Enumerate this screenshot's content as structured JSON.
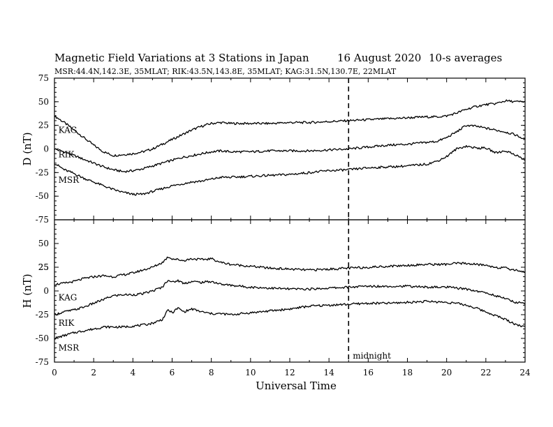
{
  "header": {
    "title": "Magnetic Field Variations at 3 Stations in Japan",
    "date": "16 August  2020",
    "averaging": "10-s averages",
    "stations_info": "MSR:44.4N,142.3E, 35MLAT;  RIK:43.5N,143.8E, 35MLAT;  KAG:31.5N,130.7E, 22MLAT"
  },
  "annotations": {
    "midnight_label": "midnight",
    "midnight_ut": 15
  },
  "chart_data": [
    {
      "type": "line",
      "panel": "D",
      "ylabel": "D (nT)",
      "xlim": [
        0,
        24
      ],
      "ylim": [
        -75,
        75
      ],
      "yticks": [
        -75,
        -50,
        -25,
        0,
        25,
        50,
        75
      ],
      "ytick_labels": [
        "-75",
        "-50",
        "-25",
        "0",
        "25",
        "50",
        "75"
      ],
      "x": [
        0,
        0.5,
        1,
        1.5,
        2,
        2.5,
        3,
        3.5,
        4,
        4.5,
        5,
        5.5,
        6,
        6.5,
        7,
        7.5,
        8,
        8.5,
        9,
        10,
        11,
        12,
        13,
        14,
        15,
        16,
        17,
        18,
        19,
        19.5,
        20,
        20.5,
        21,
        21.5,
        22,
        22.5,
        23,
        23.5,
        24
      ],
      "series": [
        {
          "name": "KAG",
          "values": [
            35,
            28,
            20,
            12,
            4,
            -3,
            -7,
            -6,
            -5,
            -3,
            0,
            5,
            10,
            15,
            20,
            24,
            27,
            28,
            27,
            27,
            27,
            28,
            28,
            29,
            30,
            31,
            32,
            33,
            34,
            34,
            35,
            38,
            42,
            45,
            47,
            48,
            51,
            50,
            50
          ]
        },
        {
          "name": "RIK",
          "values": [
            0,
            -3,
            -7,
            -11,
            -15,
            -19,
            -22,
            -24,
            -23,
            -21,
            -18,
            -15,
            -12,
            -9,
            -7,
            -5,
            -3,
            -2,
            -3,
            -3,
            -2,
            -2,
            -2,
            -1,
            0,
            2,
            4,
            5,
            7,
            8,
            12,
            18,
            25,
            24,
            22,
            20,
            18,
            15,
            10
          ]
        },
        {
          "name": "MSR",
          "values": [
            -15,
            -22,
            -26,
            -31,
            -35,
            -39,
            -43,
            -46,
            -48,
            -48,
            -45,
            -42,
            -39,
            -37,
            -35,
            -34,
            -32,
            -30,
            -30,
            -29,
            -28,
            -27,
            -25,
            -23,
            -22,
            -20,
            -19,
            -18,
            -16,
            -13,
            -8,
            0,
            3,
            1,
            1,
            -4,
            -2,
            -6,
            -12
          ]
        }
      ],
      "series_label_x": {
        "KAG": 0.2,
        "RIK": 0.2,
        "MSR": 0.2
      },
      "series_label_y": {
        "KAG": 20,
        "RIK": -6,
        "MSR": -33
      },
      "label_text": {
        "KAG": "KAG",
        "RIK": "RIK",
        "MSR": "MSR"
      }
    },
    {
      "type": "line",
      "panel": "H",
      "ylabel": "H (nT)",
      "xlabel": "Universal Time",
      "xlim": [
        0,
        24
      ],
      "ylim": [
        -75,
        75
      ],
      "xticks": [
        0,
        2,
        4,
        6,
        8,
        10,
        12,
        14,
        16,
        18,
        20,
        22,
        24
      ],
      "xtick_labels": [
        "0",
        "2",
        "4",
        "6",
        "8",
        "10",
        "12",
        "14",
        "16",
        "18",
        "20",
        "22",
        "24"
      ],
      "yticks": [
        -75,
        -50,
        -25,
        0,
        25,
        50,
        75
      ],
      "ytick_labels": [
        "-75",
        "-50",
        "-25",
        "0",
        "25",
        "",
        ""
      ],
      "ytick_labels_top": [
        "50"
      ],
      "x": [
        0,
        0.5,
        1,
        1.5,
        2,
        2.5,
        3,
        3.5,
        4,
        4.5,
        5,
        5.5,
        5.8,
        6,
        6.3,
        6.6,
        7,
        7.5,
        8,
        8.5,
        9,
        10,
        11,
        12,
        13,
        14,
        15,
        16,
        17,
        18,
        19,
        20,
        20.5,
        21,
        21.5,
        22,
        22.5,
        23,
        23.5,
        24
      ],
      "series": [
        {
          "name": "KAG",
          "values": [
            7,
            8,
            10,
            13,
            15,
            16,
            15,
            17,
            19,
            22,
            25,
            30,
            36,
            34,
            33,
            32,
            34,
            33,
            34,
            30,
            28,
            26,
            24,
            23,
            22,
            23,
            24,
            25,
            26,
            27,
            28,
            28,
            29,
            29,
            28,
            27,
            25,
            24,
            22,
            20
          ]
        },
        {
          "name": "RIK",
          "values": [
            -25,
            -22,
            -20,
            -17,
            -13,
            -9,
            -5,
            -4,
            -4,
            -3,
            0,
            4,
            12,
            9,
            11,
            8,
            10,
            9,
            10,
            7,
            6,
            4,
            3,
            2,
            2,
            3,
            4,
            5,
            5,
            5,
            4,
            4,
            3,
            2,
            0,
            -2,
            -5,
            -8,
            -12,
            -13
          ]
        },
        {
          "name": "MSR",
          "values": [
            -50,
            -47,
            -44,
            -42,
            -40,
            -38,
            -38,
            -38,
            -37,
            -36,
            -34,
            -30,
            -20,
            -23,
            -18,
            -22,
            -19,
            -22,
            -24,
            -24,
            -25,
            -23,
            -21,
            -19,
            -16,
            -15,
            -14,
            -13,
            -13,
            -12,
            -11,
            -12,
            -13,
            -15,
            -18,
            -22,
            -26,
            -30,
            -35,
            -38
          ]
        }
      ],
      "series_label_x": {
        "KAG": 0.2,
        "RIK": 0.2,
        "MSR": 0.2
      },
      "series_label_y": {
        "KAG": -7,
        "RIK": -34,
        "MSR": -60
      },
      "label_text": {
        "KAG": "KAG",
        "RIK": "RIK",
        "MSR": "MSR"
      }
    }
  ]
}
